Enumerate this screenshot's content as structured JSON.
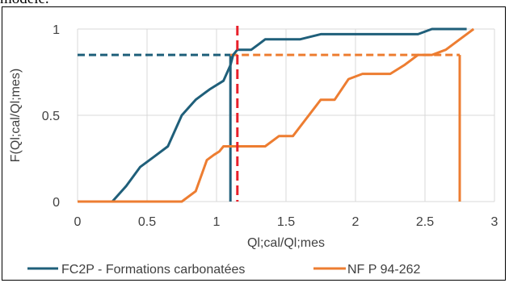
{
  "header_fragment": "modèle.",
  "chart_data": {
    "type": "line",
    "title": "",
    "xlabel": "Ql;cal/Ql;mes",
    "ylabel": "F(Ql;cal/Ql;mes)",
    "xlim": [
      0,
      3
    ],
    "ylim": [
      0,
      1
    ],
    "x_ticks": [
      "0",
      "0.5",
      "1",
      "1.5",
      "2",
      "2.5",
      "3"
    ],
    "y_ticks": [
      "0",
      "0.5",
      "1"
    ],
    "grid": "vertical and horizontal major gridlines",
    "legend_position": "bottom",
    "series": [
      {
        "name": "FC2P - Formations carbonatées",
        "color": "#1f5f7a",
        "points": [
          [
            0,
            0
          ],
          [
            0.25,
            0
          ],
          [
            0.35,
            0.09
          ],
          [
            0.45,
            0.2
          ],
          [
            0.55,
            0.26
          ],
          [
            0.65,
            0.32
          ],
          [
            0.75,
            0.5
          ],
          [
            0.85,
            0.59
          ],
          [
            0.95,
            0.65
          ],
          [
            1.05,
            0.7
          ],
          [
            1.1,
            0.79
          ],
          [
            1.12,
            0.85
          ],
          [
            1.15,
            0.88
          ],
          [
            1.25,
            0.88
          ],
          [
            1.3,
            0.91
          ],
          [
            1.35,
            0.94
          ],
          [
            1.6,
            0.94
          ],
          [
            1.75,
            0.97
          ],
          [
            2.45,
            0.97
          ],
          [
            2.55,
            1
          ],
          [
            2.8,
            1
          ]
        ]
      },
      {
        "name": "NF P 94-262",
        "color": "#ed7d31",
        "points": [
          [
            0,
            0
          ],
          [
            0.75,
            0
          ],
          [
            0.85,
            0.06
          ],
          [
            0.93,
            0.24
          ],
          [
            0.98,
            0.27
          ],
          [
            1.02,
            0.29
          ],
          [
            1.05,
            0.32
          ],
          [
            1.35,
            0.32
          ],
          [
            1.45,
            0.38
          ],
          [
            1.55,
            0.38
          ],
          [
            1.75,
            0.59
          ],
          [
            1.85,
            0.59
          ],
          [
            1.95,
            0.71
          ],
          [
            2.05,
            0.74
          ],
          [
            2.25,
            0.74
          ],
          [
            2.35,
            0.79
          ],
          [
            2.45,
            0.85
          ],
          [
            2.55,
            0.85
          ],
          [
            2.65,
            0.88
          ],
          [
            2.75,
            0.94
          ],
          [
            2.8,
            0.97
          ],
          [
            2.85,
            1
          ]
        ]
      }
    ],
    "reference_lines": {
      "fc2p_quantile": {
        "x": 1.1,
        "y": 0.85,
        "color": "#1f5f7a"
      },
      "nfp_quantile": {
        "x": 2.75,
        "y": 0.85,
        "color": "#ed7d31"
      },
      "red_marker": {
        "x": 1.15,
        "color": "#e8202a"
      }
    }
  }
}
